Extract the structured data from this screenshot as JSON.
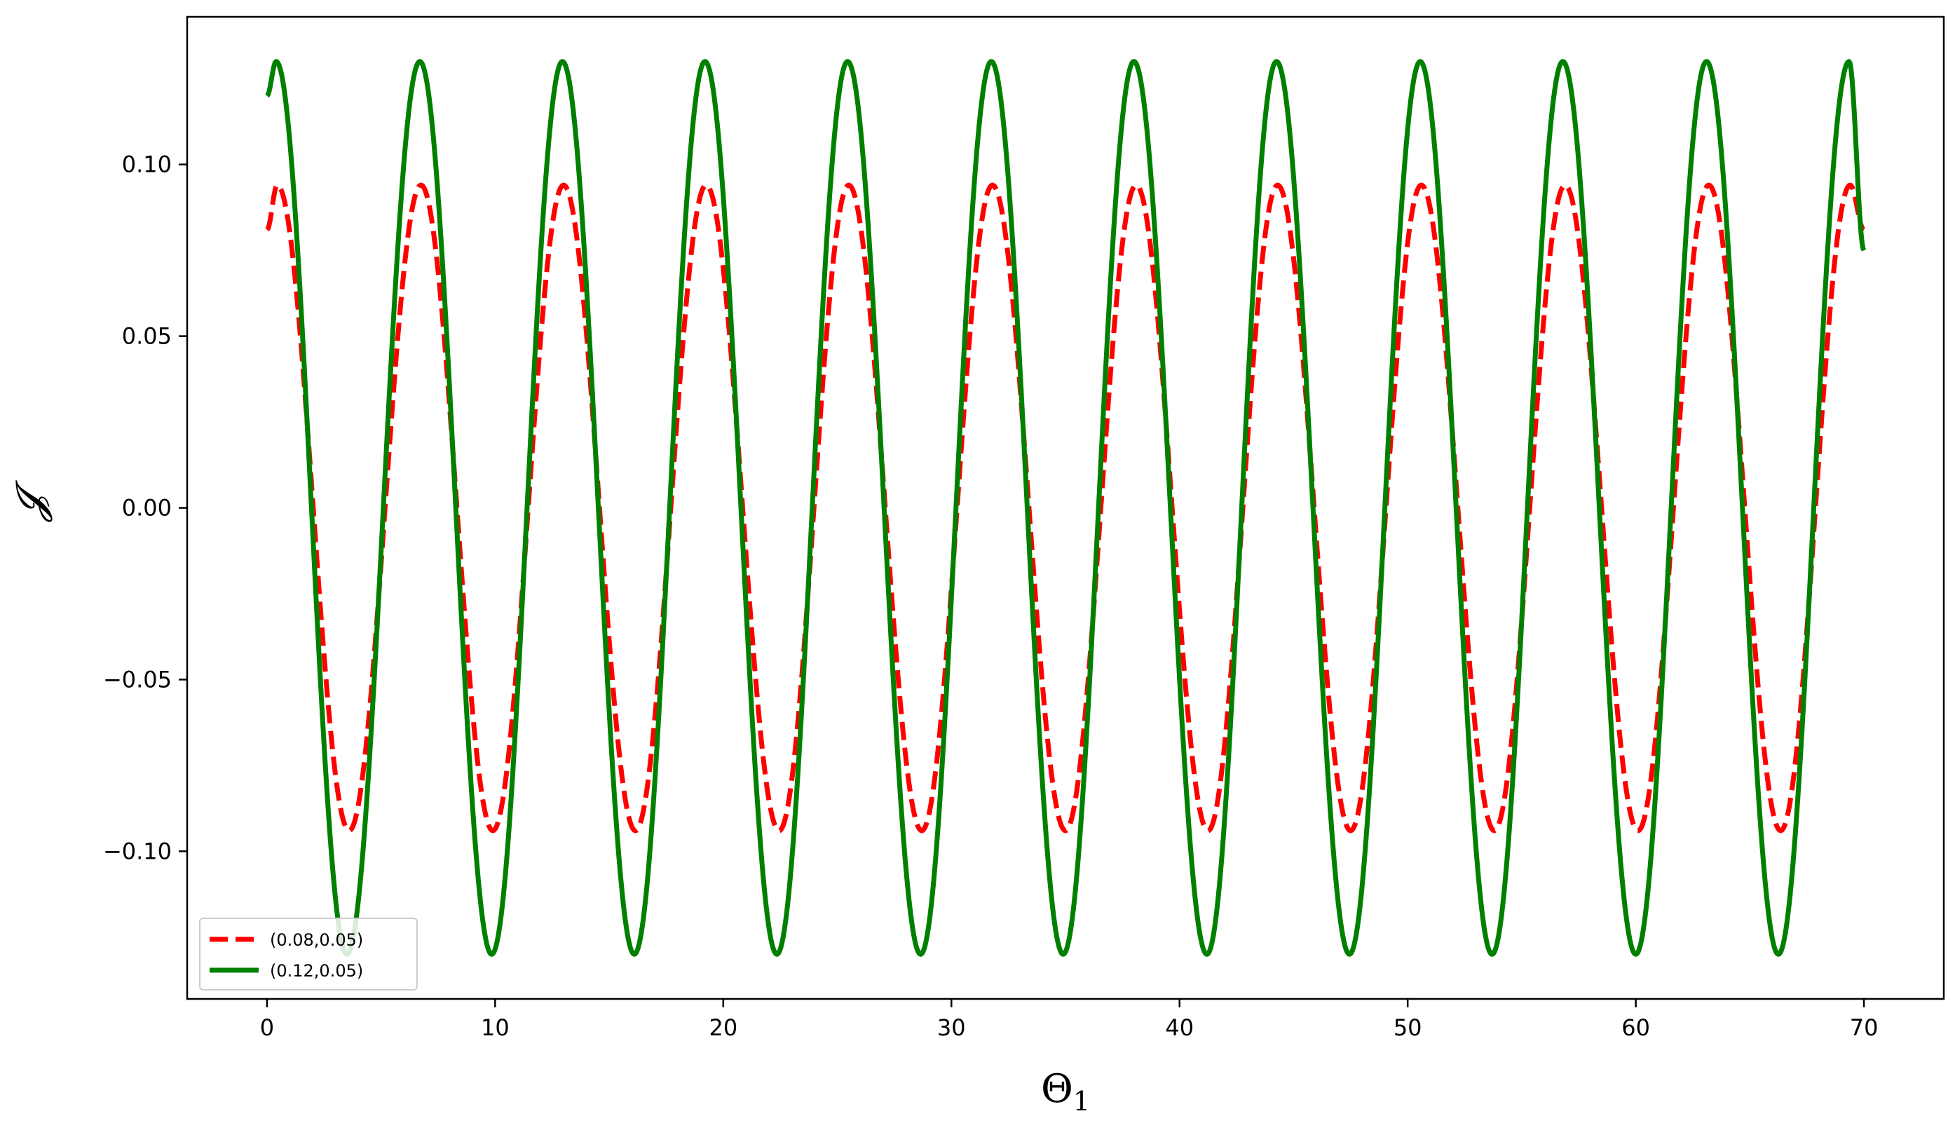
{
  "chart_data": {
    "type": "line",
    "title": "",
    "xlabel": "Θ",
    "xlabel_sub": "1",
    "ylabel": "𝓙",
    "xlim": [
      -3.5,
      73.5
    ],
    "ylim": [
      -0.143,
      0.143
    ],
    "xticks": [
      0,
      10,
      20,
      30,
      40,
      50,
      60,
      70
    ],
    "xtick_labels": [
      "0",
      "10",
      "20",
      "30",
      "40",
      "50",
      "60",
      "70"
    ],
    "yticks": [
      0.1,
      0.05,
      0.0,
      -0.05,
      -0.1
    ],
    "ytick_labels": [
      "0.10",
      "0.05",
      "0.00",
      "−0.05",
      "−0.10"
    ],
    "grid": false,
    "legend_position": "lower-left",
    "x_range": [
      0,
      70
    ],
    "period": 6.28,
    "series": [
      {
        "name": "(0.08,0.05)",
        "color": "#ff0000",
        "style": "dashed",
        "amplitude": 0.094,
        "peak_x": [
          0.45,
          6.75,
          13.0,
          19.25,
          25.5,
          31.8,
          38.1,
          44.3,
          50.6,
          56.9,
          63.2,
          69.4
        ],
        "trough_x": [
          3.6,
          9.9,
          16.15,
          22.45,
          28.7,
          35.0,
          41.25,
          47.5,
          53.8,
          60.1,
          66.35
        ],
        "start_value": 0.081,
        "end_value": 0.081
      },
      {
        "name": "(0.12,0.05)",
        "color": "#008000",
        "style": "solid",
        "amplitude": 0.13,
        "peak_x": [
          0.4,
          6.7,
          12.95,
          19.2,
          25.45,
          31.75,
          38.0,
          44.25,
          50.55,
          56.8,
          63.1,
          69.35
        ],
        "trough_x": [
          3.5,
          9.85,
          16.1,
          22.35,
          28.65,
          34.9,
          41.2,
          47.45,
          53.7,
          60.0,
          66.25
        ],
        "start_value": 0.12,
        "end_value": 0.075
      }
    ]
  }
}
